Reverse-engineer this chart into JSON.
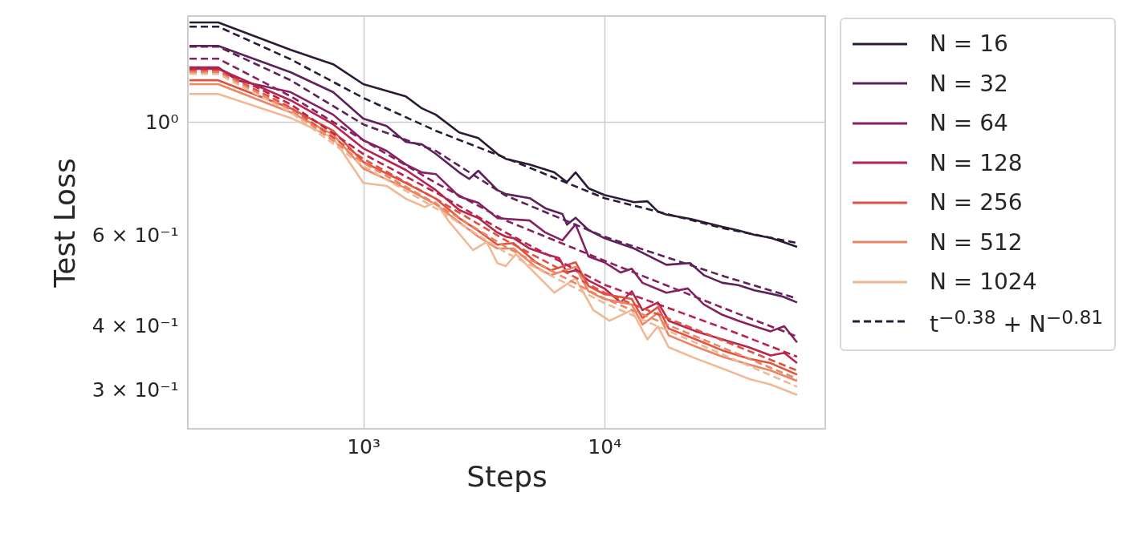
{
  "chart_data": {
    "type": "line",
    "xlabel": "Steps",
    "ylabel": "Test Loss",
    "log": "xy",
    "grid": true,
    "legend": "right",
    "line_style": "solid",
    "xlim": [
      187,
      82600
    ],
    "ylim": [
      0.2516,
      1.61
    ],
    "xticks": [
      {
        "value": 1000,
        "label": "10³"
      },
      {
        "value": 10000,
        "label": "10⁴"
      }
    ],
    "yticks": [
      {
        "value": 0.3,
        "label": "3 × 10⁻¹"
      },
      {
        "value": 0.4,
        "label": "4 × 10⁻¹"
      },
      {
        "value": 0.6,
        "label": "6 × 10⁻¹"
      },
      {
        "value": 1,
        "label": "10⁰"
      }
    ],
    "series": [
      {
        "name": "N = 16",
        "color": "#2b1b36",
        "x": [
          190,
          250,
          500,
          750,
          1000,
          1500,
          1750,
          2000,
          2500,
          3000,
          3600,
          3900,
          4900,
          6200,
          7000,
          7600,
          8600,
          10000,
          13300,
          15100,
          16700,
          18100,
          22700,
          30900,
          36000,
          42000,
          49000,
          55000,
          63100
        ],
        "values": [
          1.564,
          1.564,
          1.383,
          1.296,
          1.185,
          1.122,
          1.063,
          1.033,
          0.954,
          0.93,
          0.866,
          0.847,
          0.826,
          0.797,
          0.763,
          0.797,
          0.742,
          0.72,
          0.697,
          0.7,
          0.668,
          0.659,
          0.647,
          0.624,
          0.614,
          0.602,
          0.594,
          0.583,
          0.57
        ]
      },
      {
        "name": "N = 32",
        "color": "#5c2259",
        "x": [
          190,
          250,
          500,
          750,
          1000,
          1250,
          1500,
          1750,
          2000,
          2500,
          2750,
          3000,
          3600,
          3900,
          4900,
          5700,
          6700,
          7000,
          7600,
          8600,
          10000,
          13300,
          18100,
          22700,
          25900,
          30900,
          36000,
          42000,
          49000,
          55000,
          63100
        ],
        "values": [
          1.408,
          1.408,
          1.25,
          1.143,
          1.015,
          0.982,
          0.914,
          0.904,
          0.866,
          0.797,
          0.774,
          0.803,
          0.736,
          0.723,
          0.71,
          0.678,
          0.661,
          0.63,
          0.65,
          0.615,
          0.593,
          0.566,
          0.526,
          0.53,
          0.502,
          0.485,
          0.48,
          0.469,
          0.462,
          0.456,
          0.444
        ]
      },
      {
        "name": "N = 64",
        "color": "#87205f",
        "x": [
          190,
          250,
          300,
          500,
          750,
          1000,
          1250,
          1500,
          1750,
          2000,
          2500,
          3000,
          3600,
          3900,
          4900,
          5700,
          6700,
          7600,
          8600,
          10000,
          11700,
          13000,
          14400,
          18100,
          22200,
          25900,
          30900,
          36000,
          42000,
          49000,
          55800,
          63100
        ],
        "values": [
          1.278,
          1.278,
          1.206,
          1.143,
          1.033,
          0.921,
          0.878,
          0.826,
          0.797,
          0.791,
          0.715,
          0.695,
          0.649,
          0.647,
          0.642,
          0.608,
          0.587,
          0.631,
          0.546,
          0.532,
          0.508,
          0.517,
          0.485,
          0.464,
          0.473,
          0.44,
          0.42,
          0.409,
          0.399,
          0.39,
          0.399,
          0.371
        ]
      },
      {
        "name": "N = 128",
        "color": "#b7254f",
        "x": [
          190,
          250,
          500,
          750,
          1000,
          1500,
          2000,
          2500,
          3000,
          3600,
          3900,
          4200,
          4900,
          5700,
          6500,
          7000,
          7600,
          8600,
          10000,
          11700,
          13000,
          14400,
          16700,
          18500,
          24000,
          30900,
          39800,
          49000,
          55800,
          63100
        ],
        "values": [
          1.269,
          1.269,
          1.102,
          0.989,
          0.888,
          0.806,
          0.736,
          0.673,
          0.649,
          0.608,
          0.597,
          0.593,
          0.566,
          0.552,
          0.542,
          0.508,
          0.513,
          0.49,
          0.473,
          0.444,
          0.467,
          0.429,
          0.444,
          0.409,
          0.39,
          0.376,
          0.363,
          0.35,
          0.354,
          0.338
        ]
      },
      {
        "name": "N = 256",
        "color": "#e0513f",
        "x": [
          190,
          250,
          500,
          750,
          1000,
          1500,
          2000,
          2500,
          3000,
          3600,
          4200,
          5200,
          6000,
          7600,
          8600,
          10000,
          13000,
          14400,
          16700,
          18500,
          24000,
          30900,
          39800,
          49000,
          63100
        ],
        "values": [
          1.206,
          1.206,
          1.063,
          0.961,
          0.835,
          0.76,
          0.708,
          0.649,
          0.613,
          0.576,
          0.58,
          0.532,
          0.513,
          0.532,
          0.478,
          0.461,
          0.451,
          0.414,
          0.435,
          0.395,
          0.376,
          0.358,
          0.345,
          0.338,
          0.321
        ]
      },
      {
        "name": "N = 512",
        "color": "#ec8563",
        "x": [
          190,
          250,
          500,
          750,
          1000,
          1500,
          2000,
          2500,
          3000,
          3600,
          4200,
          5200,
          6000,
          7600,
          8600,
          10000,
          13000,
          14400,
          16700,
          18500,
          24000,
          30900,
          39800,
          49000,
          63100
        ],
        "values": [
          1.185,
          1.185,
          1.044,
          0.944,
          0.811,
          0.742,
          0.69,
          0.637,
          0.597,
          0.566,
          0.566,
          0.521,
          0.502,
          0.521,
          0.467,
          0.451,
          0.44,
          0.402,
          0.424,
          0.383,
          0.364,
          0.348,
          0.336,
          0.327,
          0.312
        ]
      },
      {
        "name": "N = 1024",
        "color": "#f0b894",
        "x": [
          190,
          250,
          500,
          750,
          1000,
          1250,
          1500,
          1800,
          2000,
          2250,
          2850,
          3250,
          3600,
          3900,
          4300,
          6200,
          7600,
          9000,
          10500,
          13000,
          15100,
          16700,
          18500,
          24000,
          30900,
          39800,
          49000,
          63100
        ],
        "values": [
          1.134,
          1.134,
          1.018,
          0.93,
          0.76,
          0.75,
          0.708,
          0.682,
          0.697,
          0.642,
          0.562,
          0.583,
          0.53,
          0.523,
          0.552,
          0.464,
          0.495,
          0.429,
          0.409,
          0.429,
          0.376,
          0.399,
          0.363,
          0.345,
          0.33,
          0.315,
          0.307,
          0.293
        ]
      },
      {
        "name": "t$^{−0.38}$ + N$^{−0.81}$",
        "color": "#2b1b36",
        "line_style": "dashed",
        "x": [
          190,
          250,
          500,
          1000,
          2000,
          3900,
          10000,
          31600,
          63100
        ],
        "values": [
          1.535,
          1.535,
          1.325,
          1.114,
          0.961,
          0.85,
          0.71,
          0.619,
          0.58
        ]
      },
      {
        "color": "#5c2259",
        "line_style": "dashed",
        "x": [
          190,
          250,
          500,
          1000,
          2000,
          3900,
          10000,
          31600,
          63100
        ],
        "values": [
          1.403,
          1.403,
          1.206,
          0.989,
          0.878,
          0.718,
          0.597,
          0.499,
          0.452
        ]
      },
      {
        "color": "#87205f",
        "line_style": "dashed",
        "x": [
          190,
          250,
          500,
          1000,
          2000,
          3900,
          10000,
          31600,
          63100
        ],
        "values": [
          1.329,
          1.329,
          1.122,
          0.921,
          0.76,
          0.642,
          0.536,
          0.432,
          0.381
        ]
      },
      {
        "color": "#b7254f",
        "line_style": "dashed",
        "x": [
          190,
          250,
          500,
          1000,
          2000,
          3900,
          10000,
          31600,
          63100
        ],
        "values": [
          1.273,
          1.273,
          1.082,
          0.866,
          0.728,
          0.608,
          0.481,
          0.395,
          0.348
        ]
      },
      {
        "color": "#e0513f",
        "line_style": "dashed",
        "x": [
          190,
          250,
          500,
          1000,
          2000,
          3900,
          10000,
          31600,
          63100
        ],
        "values": [
          1.259,
          1.259,
          1.067,
          0.847,
          0.708,
          0.587,
          0.464,
          0.373,
          0.327
        ]
      },
      {
        "color": "#ec8563",
        "line_style": "dashed",
        "x": [
          190,
          250,
          500,
          1000,
          2000,
          3900,
          10000,
          31600,
          63100
        ],
        "values": [
          1.25,
          1.25,
          1.056,
          0.832,
          0.692,
          0.57,
          0.452,
          0.361,
          0.315
        ]
      },
      {
        "color": "#f0b894",
        "line_style": "dashed",
        "x": [
          190,
          250,
          500,
          1000,
          2000,
          3900,
          10000,
          31600,
          63100
        ],
        "values": [
          1.241,
          1.241,
          1.044,
          0.82,
          0.678,
          0.556,
          0.443,
          0.35,
          0.304
        ]
      }
    ]
  }
}
